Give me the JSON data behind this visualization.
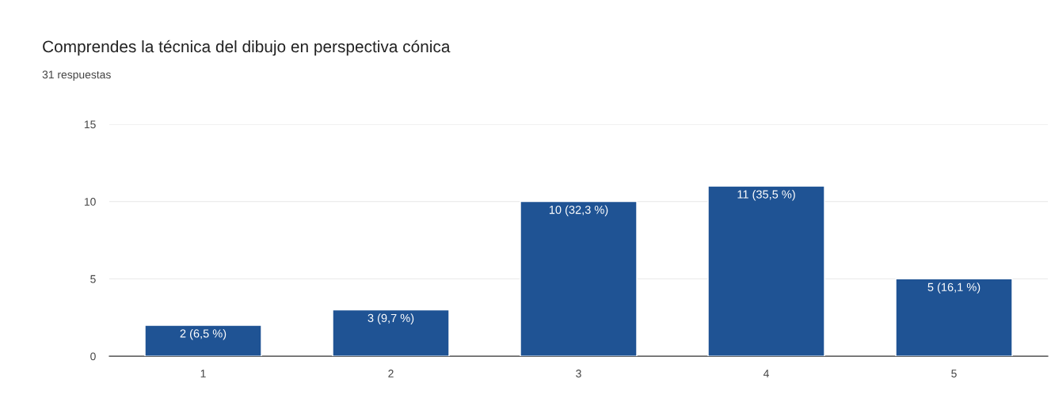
{
  "chart_data": {
    "type": "bar",
    "title": "Comprendes la técnica del dibujo en perspectiva cónica",
    "subtitle": "31 respuestas",
    "categories": [
      "1",
      "2",
      "3",
      "4",
      "5"
    ],
    "values": [
      2,
      3,
      10,
      11,
      5
    ],
    "value_labels": [
      "2 (6,5 %)",
      "3 (9,7 %)",
      "10 (32,3 %)",
      "11 (35,5 %)",
      "5 (16,1 %)"
    ],
    "color": "#1f5394",
    "ylim": [
      0,
      15
    ],
    "yticks": [
      0,
      5,
      10,
      15
    ],
    "grid": "y"
  }
}
